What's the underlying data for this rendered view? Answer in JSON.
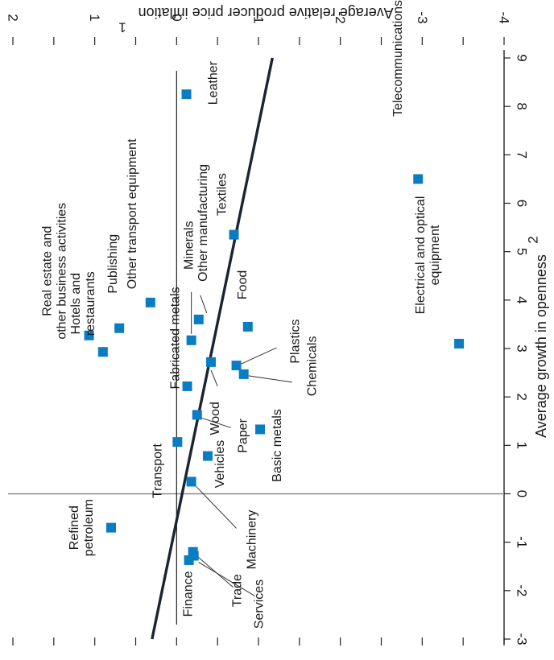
{
  "chart_data": {
    "type": "scatter",
    "orientation": "rotated 90 degrees clockwise",
    "xlabel": "Average growth in openness",
    "xlabel_superscript": "2",
    "ylabel": "Average relative producer price inflation",
    "ylabel_superscript": "1",
    "xlim": [
      -3,
      9
    ],
    "ylim": [
      -4,
      2
    ],
    "x_ticks": [
      "-3",
      "-2",
      "-1",
      "0",
      "1",
      "2",
      "3",
      "4",
      "5",
      "6",
      "7",
      "8",
      "9"
    ],
    "y_ticks": [
      "-4",
      "-3",
      "-2",
      "-1",
      "0",
      "1",
      "2"
    ],
    "x_tick_values": [
      -3,
      -2,
      -1,
      0,
      1,
      2,
      3,
      4,
      5,
      6,
      7,
      8,
      9
    ],
    "y_tick_values": [
      -4,
      -3,
      -2,
      -1,
      0,
      1,
      2
    ],
    "grid": false,
    "zero_lines": true,
    "marker": "square",
    "marker_color": "#0a7cc1",
    "trend_color": "#1b2431",
    "trendline": {
      "x": [
        -3,
        9
      ],
      "y": [
        0.3,
        -1.17
      ]
    },
    "points": [
      {
        "label": "Leather",
        "x": 8.25,
        "y": -0.12
      },
      {
        "label": "Telecommunications",
        "x": 6.5,
        "y": -2.95
      },
      {
        "label": "Textiles",
        "x": 5.35,
        "y": -0.7
      },
      {
        "label": "Other transport equipment",
        "x": 3.95,
        "y": 0.32
      },
      {
        "label": "Food",
        "x": 3.45,
        "y": -0.87
      },
      {
        "label": "Publishing",
        "x": 3.42,
        "y": 0.7
      },
      {
        "label": "Real estate and other business activities",
        "x": 3.27,
        "y": 1.07
      },
      {
        "label": "Other manufacturing",
        "x": 3.6,
        "y": -0.27
      },
      {
        "label": "Minerals",
        "x": 3.17,
        "y": -0.18
      },
      {
        "label": "Electrical and optical equipment",
        "x": 3.1,
        "y": -3.45
      },
      {
        "label": "Hotels and restaurants",
        "x": 2.93,
        "y": 0.9
      },
      {
        "label": "Wood",
        "x": 2.72,
        "y": -0.42
      },
      {
        "label": "Plastics",
        "x": 2.65,
        "y": -0.73
      },
      {
        "label": "Chemicals",
        "x": 2.47,
        "y": -0.82
      },
      {
        "label": "Fabricated metals",
        "x": 2.22,
        "y": -0.13
      },
      {
        "label": "Paper",
        "x": 1.63,
        "y": -0.25
      },
      {
        "label": "Basic metals",
        "x": 1.33,
        "y": -1.02
      },
      {
        "label": "Transport",
        "x": 1.07,
        "y": -0.01
      },
      {
        "label": "Vehicles",
        "x": 0.78,
        "y": -0.38
      },
      {
        "label": "Machinery",
        "x": 0.25,
        "y": -0.18
      },
      {
        "label": "Refined petroleum",
        "x": -0.7,
        "y": 0.8
      },
      {
        "label": "Trade",
        "x": -1.2,
        "y": -0.2
      },
      {
        "label": "Finance",
        "x": -1.37,
        "y": -0.15
      },
      {
        "label": "Services",
        "x": -1.28,
        "y": -0.21
      }
    ]
  }
}
